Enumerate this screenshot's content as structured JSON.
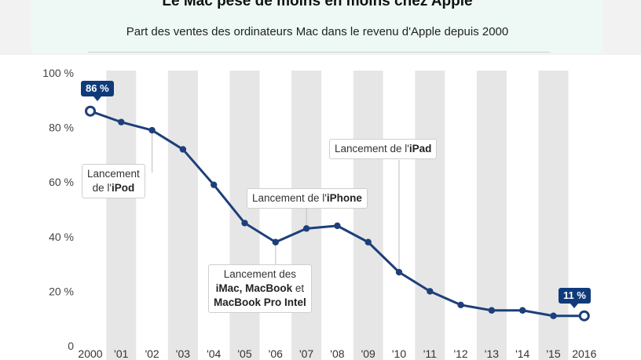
{
  "header": {
    "title": "Le Mac pèse de moins en moins chez Apple",
    "subtitle": "Part des ventes des ordinateurs Mac dans le revenu d'Apple depuis 2000"
  },
  "colors": {
    "line": "#1d3f7a",
    "label_bg": "#0f3b7a",
    "stripe": "#e6e6e6",
    "header_bg": "#eef9f6"
  },
  "annotations": {
    "ipod": {
      "prefix": "Lancement",
      "line2": "de l'",
      "product": "iPod"
    },
    "iphone": {
      "prefix": "Lancement de l'",
      "product": "iPhone"
    },
    "ipad": {
      "prefix": "Lancement de l'",
      "product": "iPad"
    },
    "imac": {
      "line1": "Lancement des",
      "line2a": "iMac, MacBook",
      "line2b": " et",
      "line3": "MacBook Pro Intel"
    }
  },
  "highlights": {
    "first": "86 %",
    "last": "11 %"
  },
  "chart_data": {
    "type": "line",
    "title": "Le Mac pèse de moins en moins chez Apple",
    "subtitle": "Part des ventes des ordinateurs Mac dans le revenu d'Apple depuis 2000",
    "categories": [
      "2000",
      "'01",
      "'02",
      "'03",
      "'04",
      "'05",
      "'06",
      "'07",
      "'08",
      "'09",
      "'10",
      "'11",
      "'12",
      "'13",
      "'14",
      "'15",
      "2016"
    ],
    "series": [
      {
        "values": [
          86,
          82,
          79,
          72,
          59,
          45,
          38,
          43,
          44,
          38,
          27,
          20,
          15,
          13,
          13,
          11,
          11
        ]
      }
    ],
    "ylim": [
      0,
      100
    ],
    "yticks": [
      0,
      20,
      40,
      60,
      80,
      100
    ],
    "ytick_labels": [
      "0",
      "20 %",
      "40 %",
      "60 %",
      "80 %",
      "100 %"
    ],
    "grid": false,
    "alternating_bands": true
  }
}
